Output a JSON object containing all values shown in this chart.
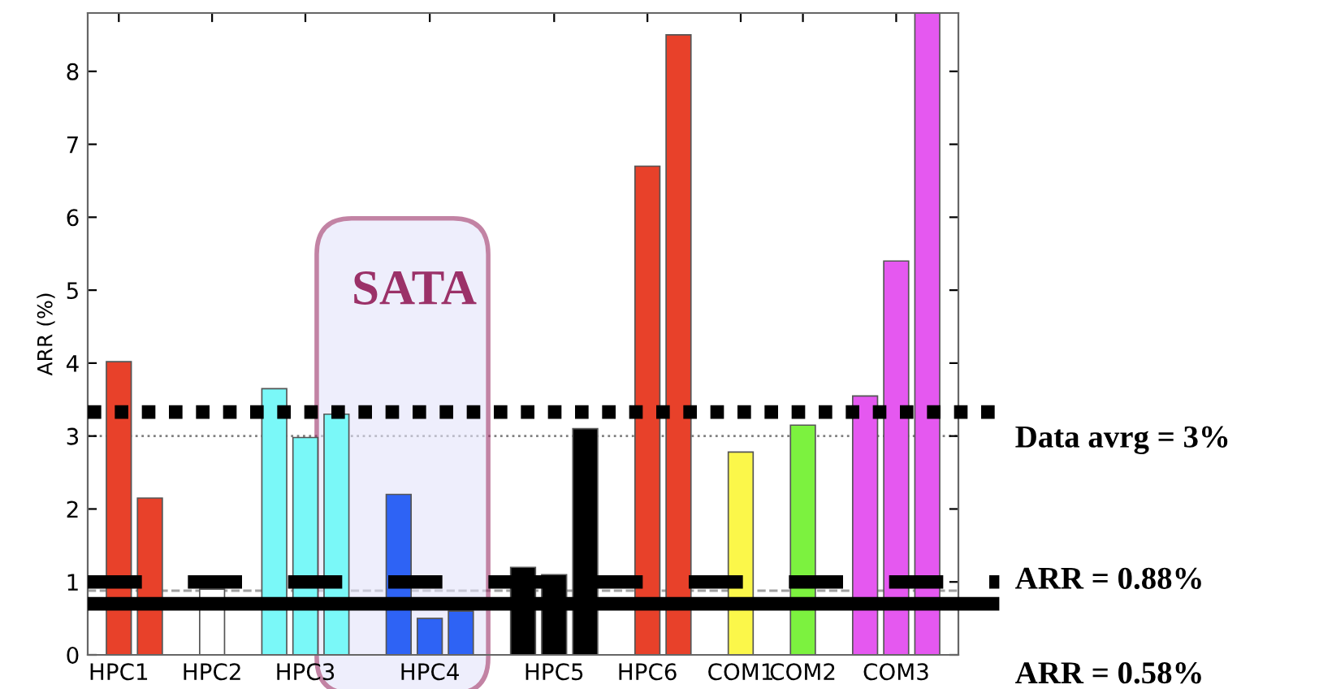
{
  "chart_data": {
    "type": "bar",
    "ylabel": "ARR (%)",
    "categories": [
      "HPC1",
      null,
      null,
      "HPC2",
      null,
      null,
      "HPC3",
      null,
      null,
      null,
      "HPC4",
      null,
      null,
      null,
      "HPC5",
      null,
      null,
      "HPC6",
      null,
      null,
      "COM1",
      null,
      "COM2",
      null,
      null,
      "COM3",
      null
    ],
    "values": [
      4.02,
      2.15,
      null,
      0.9,
      null,
      3.65,
      2.98,
      3.3,
      null,
      2.2,
      0.5,
      0.6,
      null,
      1.2,
      1.1,
      3.1,
      null,
      6.7,
      8.5,
      null,
      2.78,
      null,
      3.15,
      null,
      3.55,
      5.4,
      8.8
    ],
    "colors": [
      "#e8412a",
      "#e8412a",
      null,
      "#ffffff",
      null,
      "#7af8f8",
      "#7af8f8",
      "#7af8f8",
      null,
      "#2e63f5",
      "#2e63f5",
      "#2e63f5",
      null,
      "#000000",
      "#000000",
      "#000000",
      null,
      "#e8412a",
      "#e8412a",
      null,
      "#fbf74a",
      null,
      "#7cf23f",
      null,
      "#e558f0",
      "#e558f0",
      "#e558f0"
    ],
    "ylim": [
      0,
      8.8
    ],
    "yticks": [
      0,
      1,
      2,
      3,
      4,
      5,
      6,
      7,
      8
    ],
    "grid": false,
    "ref_lines": [
      {
        "axis": "y",
        "value": 3.0,
        "color": "#808080",
        "line_style": "dotted"
      },
      {
        "axis": "y",
        "value": 0.88,
        "color": "#a0a0a0",
        "line_style": "dashed"
      },
      {
        "axis": "y",
        "value": 3.33,
        "color": "#000000",
        "line_style": "dotted"
      },
      {
        "axis": "y",
        "value": 1.0,
        "color": "#000000",
        "line_style": "dashed"
      },
      {
        "axis": "y",
        "value": 0.7,
        "color": "#000000",
        "line_style": "solid"
      }
    ],
    "annotations": [
      "Data avrg = 3%",
      "ARR = 0.88%",
      "ARR = 0.58%",
      "SATA"
    ]
  }
}
